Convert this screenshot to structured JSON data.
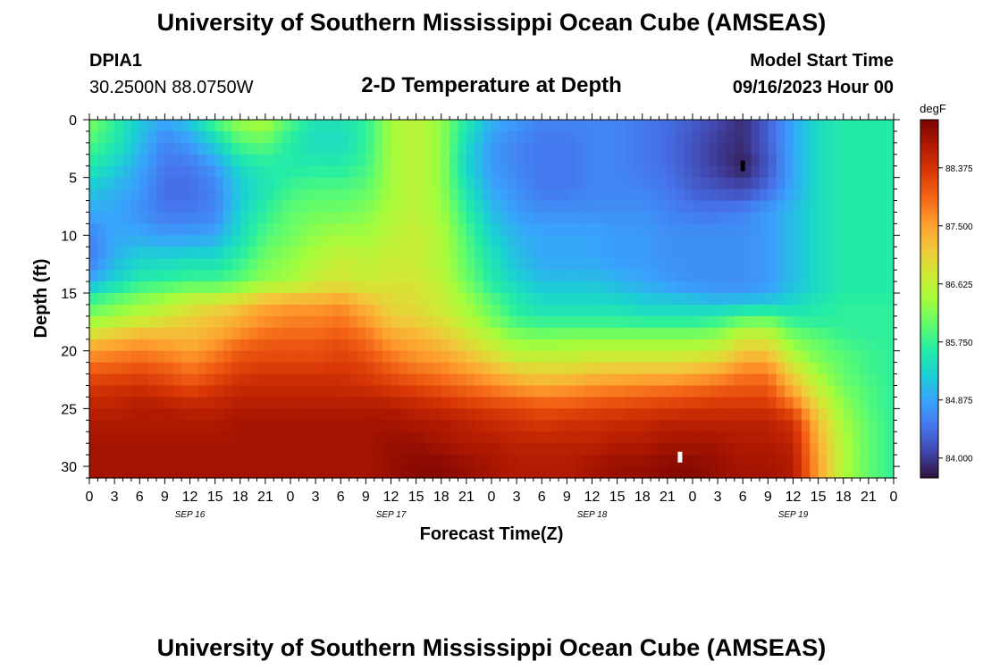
{
  "header": {
    "title": "University of Southern Mississippi Ocean Cube (AMSEAS)",
    "station": "DPIA1",
    "coords": "30.2500N  88.0750W",
    "subtitle": "2-D Temperature at Depth",
    "model_start_label": "Model Start Time",
    "model_start_value": "09/16/2023 Hour 00",
    "repeated_title": "University of Southern Mississippi Ocean Cube (AMSEAS)"
  },
  "colors": {
    "cmap": [
      "#30123b",
      "#4145ab",
      "#4675ed",
      "#39a2fc",
      "#1bcfd4",
      "#24eca6",
      "#61fc6c",
      "#a4fc3b",
      "#d1e834",
      "#f3c63a",
      "#fe9b2d",
      "#f36315",
      "#d93806",
      "#b11901",
      "#7a0402"
    ]
  },
  "chart_data": {
    "type": "heatmap",
    "title": "2-D Temperature at Depth",
    "xlabel": "Forecast Time(Z)",
    "ylabel": "Depth (ft)",
    "x_tick_labels": [
      "0",
      "3",
      "6",
      "9",
      "12",
      "15",
      "18",
      "21",
      "0",
      "3",
      "6",
      "9",
      "12",
      "15",
      "18",
      "21",
      "0",
      "3",
      "6",
      "9",
      "12",
      "15",
      "18",
      "21",
      "0",
      "3",
      "6",
      "9",
      "12",
      "15",
      "18",
      "21",
      "0"
    ],
    "x_hours": [
      0,
      3,
      6,
      9,
      12,
      15,
      18,
      21,
      24,
      27,
      30,
      33,
      36,
      39,
      42,
      45,
      48,
      51,
      54,
      57,
      60,
      63,
      66,
      69,
      72,
      75,
      78,
      81,
      84,
      87,
      90,
      93,
      96
    ],
    "xlim": [
      0,
      96
    ],
    "date_labels": [
      {
        "label": "SEP 16",
        "hour": 12
      },
      {
        "label": "SEP 17",
        "hour": 36
      },
      {
        "label": "SEP 18",
        "hour": 60
      },
      {
        "label": "SEP 19",
        "hour": 84
      }
    ],
    "y_ticks": [
      0,
      5,
      10,
      15,
      20,
      25,
      30
    ],
    "y_tick_labels": [
      "0",
      "5",
      "10",
      "15",
      "20",
      "25",
      "30"
    ],
    "ylim": [
      0,
      31
    ],
    "colorbar": {
      "unit": "degF",
      "min": 83.7,
      "max": 89.1,
      "ticks": [
        84.0,
        84.875,
        85.75,
        86.625,
        87.5,
        88.375
      ],
      "tick_labels": [
        "84.000",
        "84.875",
        "85.750",
        "86.625",
        "87.500",
        "88.375"
      ]
    },
    "markers": [
      {
        "hour": 78,
        "depth": 4,
        "color": "#000000"
      },
      {
        "hour": 70.5,
        "depth": 29.2,
        "color": "#ffffff"
      }
    ],
    "depths": [
      0,
      2,
      4,
      6,
      8,
      10,
      12,
      14,
      15,
      16,
      17,
      18,
      19,
      20,
      21,
      22,
      23,
      24,
      25,
      26,
      28,
      30,
      31
    ],
    "hours": [
      0,
      3,
      6,
      9,
      12,
      15,
      18,
      21,
      24,
      27,
      30,
      33,
      36,
      39,
      42,
      45,
      48,
      51,
      54,
      57,
      60,
      63,
      66,
      69,
      72,
      75,
      78,
      81,
      84,
      87,
      90,
      93,
      96
    ],
    "temperature_degF": [
      [
        86.2,
        85.7,
        85.2,
        84.9,
        85.2,
        85.9,
        86.4,
        86.5,
        85.9,
        85.5,
        85.5,
        85.7,
        86.4,
        86.6,
        86.3,
        85.6,
        85.0,
        84.8,
        84.6,
        84.6,
        84.6,
        84.6,
        84.5,
        84.4,
        84.3,
        84.1,
        83.9,
        84.3,
        84.9,
        85.4,
        85.6,
        85.6,
        85.6
      ],
      [
        85.9,
        85.6,
        85.1,
        84.6,
        84.8,
        85.3,
        85.9,
        86.0,
        85.6,
        85.4,
        85.4,
        85.7,
        86.4,
        86.6,
        86.3,
        85.4,
        84.8,
        84.6,
        84.5,
        84.5,
        84.6,
        84.6,
        84.5,
        84.4,
        84.2,
        84.0,
        83.9,
        84.3,
        84.9,
        85.4,
        85.6,
        85.6,
        85.6
      ],
      [
        85.6,
        85.3,
        84.9,
        84.5,
        84.5,
        84.8,
        85.4,
        85.6,
        85.6,
        85.6,
        85.6,
        85.8,
        86.4,
        86.6,
        86.3,
        85.3,
        84.8,
        84.6,
        84.5,
        84.5,
        84.6,
        84.6,
        84.5,
        84.4,
        84.2,
        84.0,
        83.8,
        84.2,
        84.9,
        85.4,
        85.6,
        85.6,
        85.6
      ],
      [
        85.2,
        85.0,
        84.8,
        84.4,
        84.4,
        84.6,
        85.2,
        85.5,
        85.8,
        85.9,
        85.9,
        86.0,
        86.4,
        86.6,
        86.3,
        85.5,
        84.9,
        84.7,
        84.5,
        84.5,
        84.6,
        84.6,
        84.6,
        84.5,
        84.3,
        84.2,
        84.1,
        84.4,
        84.9,
        85.4,
        85.6,
        85.6,
        85.6
      ],
      [
        84.9,
        84.9,
        84.7,
        84.5,
        84.5,
        84.6,
        85.3,
        85.7,
        86.0,
        86.1,
        86.1,
        86.2,
        86.5,
        86.6,
        86.4,
        85.7,
        85.1,
        84.8,
        84.7,
        84.7,
        84.7,
        84.7,
        84.7,
        84.6,
        84.5,
        84.5,
        84.6,
        84.8,
        85.1,
        85.4,
        85.6,
        85.6,
        85.6
      ],
      [
        84.6,
        84.9,
        84.9,
        84.8,
        84.8,
        84.9,
        85.4,
        85.9,
        86.1,
        86.3,
        86.4,
        86.4,
        86.6,
        86.7,
        86.5,
        85.9,
        85.3,
        85.0,
        84.9,
        84.9,
        84.9,
        84.8,
        84.8,
        84.7,
        84.7,
        84.7,
        84.7,
        84.8,
        85.1,
        85.4,
        85.6,
        85.6,
        85.6
      ],
      [
        84.5,
        85.0,
        85.3,
        85.3,
        85.4,
        85.4,
        85.7,
        86.1,
        86.3,
        86.5,
        86.7,
        86.6,
        86.7,
        86.7,
        86.5,
        86.0,
        85.5,
        85.1,
        84.9,
        84.9,
        84.9,
        84.8,
        84.8,
        84.7,
        84.7,
        84.7,
        84.7,
        84.8,
        85.1,
        85.4,
        85.6,
        85.6,
        85.6
      ],
      [
        84.9,
        85.3,
        85.6,
        85.7,
        85.8,
        85.8,
        86.0,
        86.3,
        86.4,
        86.7,
        86.8,
        86.7,
        86.8,
        86.8,
        86.6,
        86.1,
        85.6,
        85.3,
        85.1,
        85.1,
        85.1,
        85.0,
        84.9,
        84.8,
        84.7,
        84.7,
        84.7,
        84.8,
        85.1,
        85.4,
        85.6,
        85.6,
        85.6
      ],
      [
        85.5,
        85.8,
        86.1,
        86.2,
        86.4,
        86.4,
        86.6,
        86.9,
        87.0,
        87.1,
        87.2,
        87.0,
        86.9,
        86.9,
        86.7,
        86.3,
        85.8,
        85.5,
        85.3,
        85.3,
        85.3,
        85.2,
        85.1,
        85.0,
        84.9,
        84.8,
        84.8,
        84.9,
        85.2,
        85.4,
        85.6,
        85.6,
        85.6
      ],
      [
        85.9,
        86.1,
        86.3,
        86.5,
        86.8,
        86.9,
        87.1,
        87.4,
        87.5,
        87.5,
        87.6,
        87.3,
        87.0,
        86.9,
        86.7,
        86.4,
        86.0,
        85.6,
        85.4,
        85.4,
        85.4,
        85.4,
        85.3,
        85.3,
        85.3,
        85.2,
        85.3,
        85.3,
        85.4,
        85.6,
        85.7,
        85.7,
        85.7
      ],
      [
        86.2,
        86.4,
        86.6,
        86.8,
        87.0,
        87.2,
        87.4,
        87.6,
        87.7,
        87.7,
        87.8,
        87.5,
        87.1,
        87.0,
        86.8,
        86.5,
        86.1,
        85.7,
        85.6,
        85.6,
        85.6,
        85.6,
        85.5,
        85.5,
        85.5,
        85.6,
        85.8,
        85.9,
        85.6,
        85.6,
        85.7,
        85.7,
        85.7
      ],
      [
        86.6,
        86.8,
        87.0,
        87.1,
        87.2,
        87.3,
        87.5,
        87.7,
        87.8,
        87.8,
        87.9,
        87.7,
        87.3,
        87.2,
        87.0,
        86.7,
        86.3,
        86.0,
        85.9,
        85.9,
        85.9,
        85.9,
        85.9,
        85.9,
        85.9,
        86.0,
        86.4,
        86.4,
        85.9,
        85.8,
        85.7,
        85.7,
        85.7
      ],
      [
        87.1,
        87.3,
        87.5,
        87.4,
        87.3,
        87.5,
        87.8,
        88.0,
        88.0,
        88.0,
        88.1,
        87.9,
        87.5,
        87.4,
        87.2,
        86.9,
        86.6,
        86.3,
        86.2,
        86.3,
        86.3,
        86.3,
        86.3,
        86.3,
        86.3,
        86.4,
        86.8,
        86.8,
        86.2,
        86.0,
        85.8,
        85.7,
        85.7
      ],
      [
        87.5,
        87.6,
        87.7,
        87.6,
        87.5,
        87.7,
        88.0,
        88.1,
        88.1,
        88.1,
        88.2,
        88.0,
        87.7,
        87.5,
        87.4,
        87.1,
        86.8,
        86.5,
        86.5,
        86.5,
        86.6,
        86.6,
        86.6,
        86.6,
        86.6,
        86.7,
        87.1,
        87.1,
        86.4,
        86.1,
        85.9,
        85.8,
        85.7
      ],
      [
        87.8,
        87.9,
        88.0,
        87.9,
        87.7,
        87.9,
        88.2,
        88.2,
        88.2,
        88.2,
        88.3,
        88.2,
        87.9,
        87.7,
        87.6,
        87.4,
        87.1,
        86.8,
        86.8,
        86.8,
        86.9,
        86.9,
        86.9,
        86.9,
        87.0,
        87.1,
        87.5,
        87.5,
        86.7,
        86.2,
        86.0,
        85.8,
        85.7
      ],
      [
        88.1,
        88.1,
        88.2,
        88.1,
        87.9,
        88.1,
        88.3,
        88.4,
        88.4,
        88.4,
        88.4,
        88.3,
        88.1,
        87.9,
        87.8,
        87.6,
        87.4,
        87.2,
        87.1,
        87.1,
        87.2,
        87.3,
        87.3,
        87.3,
        87.4,
        87.5,
        87.8,
        87.8,
        87.0,
        86.4,
        86.0,
        85.8,
        85.7
      ],
      [
        88.3,
        88.4,
        88.4,
        88.3,
        88.1,
        88.3,
        88.5,
        88.5,
        88.5,
        88.5,
        88.5,
        88.4,
        88.3,
        88.2,
        88.0,
        87.9,
        87.7,
        87.5,
        87.4,
        87.5,
        87.6,
        87.6,
        87.7,
        87.7,
        87.8,
        87.9,
        88.0,
        88.0,
        87.3,
        86.6,
        86.1,
        85.9,
        85.7
      ],
      [
        88.5,
        88.5,
        88.6,
        88.5,
        88.4,
        88.5,
        88.6,
        88.6,
        88.6,
        88.6,
        88.6,
        88.6,
        88.5,
        88.4,
        88.3,
        88.1,
        88.0,
        87.9,
        87.8,
        87.8,
        87.9,
        88.0,
        88.0,
        88.1,
        88.1,
        88.2,
        88.2,
        88.2,
        87.6,
        86.8,
        86.2,
        85.9,
        85.7
      ],
      [
        88.6,
        88.6,
        88.7,
        88.7,
        88.6,
        88.6,
        88.7,
        88.7,
        88.7,
        88.7,
        88.7,
        88.7,
        88.7,
        88.6,
        88.5,
        88.4,
        88.3,
        88.2,
        88.1,
        88.1,
        88.2,
        88.2,
        88.3,
        88.3,
        88.4,
        88.4,
        88.4,
        88.4,
        88.0,
        87.0,
        86.3,
        85.9,
        85.7
      ],
      [
        88.7,
        88.7,
        88.7,
        88.7,
        88.7,
        88.7,
        88.8,
        88.8,
        88.8,
        88.8,
        88.8,
        88.8,
        88.8,
        88.7,
        88.7,
        88.6,
        88.5,
        88.4,
        88.3,
        88.4,
        88.4,
        88.5,
        88.5,
        88.6,
        88.6,
        88.6,
        88.6,
        88.6,
        88.4,
        87.2,
        86.4,
        86.0,
        85.7
      ],
      [
        88.8,
        88.8,
        88.8,
        88.8,
        88.8,
        88.8,
        88.8,
        88.8,
        88.8,
        88.8,
        88.8,
        88.8,
        88.9,
        88.9,
        88.8,
        88.7,
        88.7,
        88.6,
        88.6,
        88.6,
        88.6,
        88.7,
        88.7,
        88.8,
        88.8,
        88.8,
        88.7,
        88.7,
        88.6,
        87.4,
        86.5,
        86.0,
        85.7
      ],
      [
        88.8,
        88.8,
        88.8,
        88.8,
        88.8,
        88.8,
        88.8,
        88.8,
        88.8,
        88.8,
        88.8,
        88.8,
        88.9,
        89.0,
        89.0,
        88.9,
        88.8,
        88.7,
        88.7,
        88.7,
        88.8,
        88.9,
        88.9,
        89.0,
        89.0,
        88.9,
        88.8,
        88.8,
        88.7,
        87.5,
        86.5,
        86.0,
        85.7
      ],
      [
        88.8,
        88.8,
        88.8,
        88.8,
        88.8,
        88.8,
        88.8,
        88.8,
        88.8,
        88.8,
        88.8,
        88.8,
        88.9,
        89.0,
        89.0,
        88.9,
        88.8,
        88.7,
        88.7,
        88.7,
        88.8,
        88.9,
        88.9,
        89.0,
        89.0,
        88.9,
        88.8,
        88.8,
        88.7,
        87.5,
        86.5,
        86.0,
        85.7
      ]
    ]
  }
}
